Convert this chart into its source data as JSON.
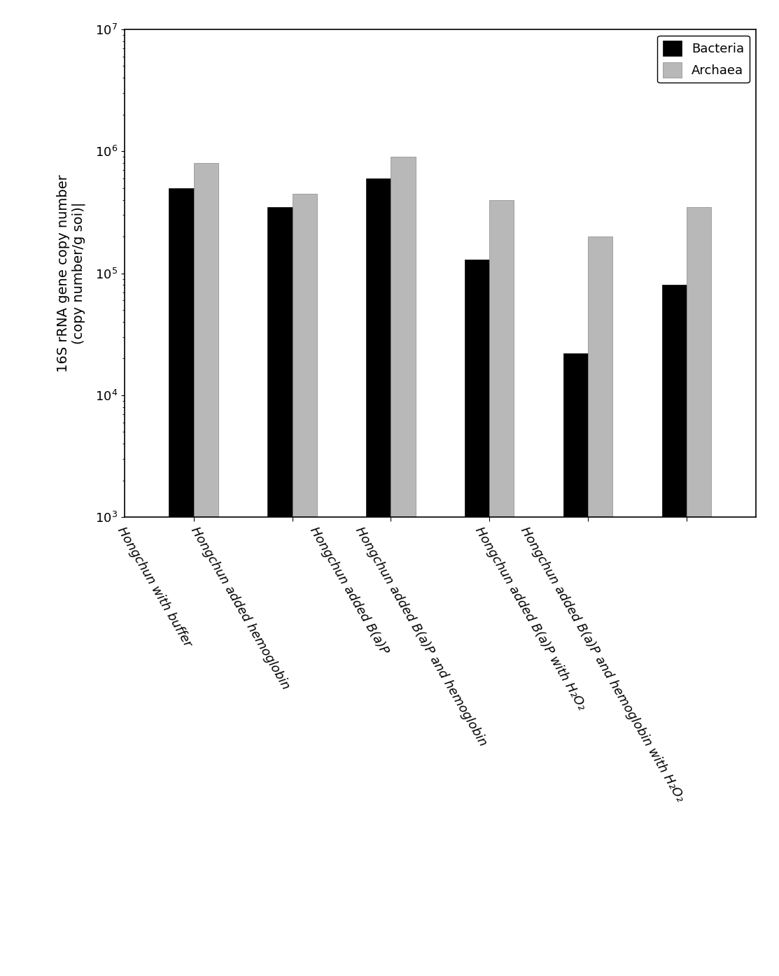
{
  "categories": [
    "Hongchun with buffer",
    "Hongchun added hemoglobin",
    "Hongchun added B(a)P",
    "Hongchun added B(a)P and hemoglobin",
    "Hongchun added B(a)P with H₂O₂",
    "Hongchun added B(a)P and hemoglobin with H₂O₂"
  ],
  "bacteria_values": [
    500000.0,
    350000.0,
    600000.0,
    130000.0,
    22000.0,
    80000.0
  ],
  "archaea_values": [
    800000.0,
    450000.0,
    900000.0,
    400000.0,
    200000.0,
    350000.0
  ],
  "bacteria_color": "#000000",
  "archaea_color": "#b8b8b8",
  "archaea_edge": "#888888",
  "ylabel_line1": "16S rRNA gene copy number",
  "ylabel_line2": "(copy number/g soi)|",
  "ylim_min": 1000.0,
  "ylim_max": 10000000.0,
  "legend_labels": [
    "Bacteria",
    "Archaea"
  ],
  "bar_width": 0.25,
  "background_color": "#ffffff",
  "tick_labelsize": 13,
  "axis_labelsize": 14,
  "legend_fontsize": 13
}
